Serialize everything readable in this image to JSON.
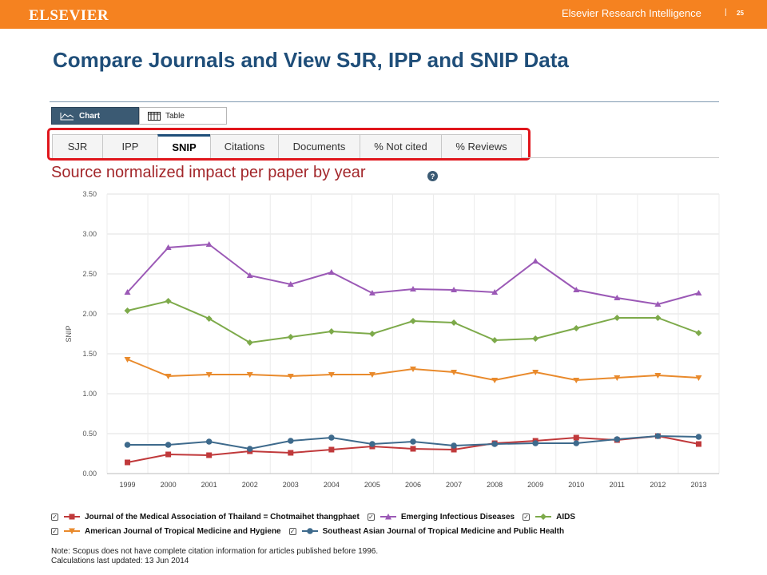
{
  "header": {
    "brand": "ELSEVIER",
    "right_brand": "Elsevier Research Intelligence",
    "separator": "|",
    "page_number": "25"
  },
  "title": "Compare Journals and View SJR, IPP and SNIP Data",
  "view_tabs": [
    {
      "label": "Chart",
      "active": true,
      "icon": "line-chart-icon"
    },
    {
      "label": "Table",
      "active": false,
      "icon": "table-icon"
    }
  ],
  "metric_tabs": [
    {
      "label": "SJR",
      "active": false
    },
    {
      "label": "IPP",
      "active": false
    },
    {
      "label": "SNIP",
      "active": true
    },
    {
      "label": "Citations",
      "active": false
    },
    {
      "label": "Documents",
      "active": false
    },
    {
      "label": "% Not cited",
      "active": false
    },
    {
      "label": "% Reviews",
      "active": false
    }
  ],
  "chart_heading": "Source normalized impact per paper by year",
  "help_icon": "?",
  "colors": {
    "header_orange": "#f58220",
    "title_blue": "#1f4e79",
    "chart_title_red": "#a3272b",
    "highlight_red": "#e0161c"
  },
  "chart_data": {
    "type": "line",
    "title": "Source normalized impact per paper by year",
    "ylabel": "SNIP",
    "xlabel": "",
    "ylim": [
      0,
      3.5
    ],
    "yticks": [
      "0.00",
      "0.50",
      "1.00",
      "1.50",
      "2.00",
      "2.50",
      "3.00",
      "3.50"
    ],
    "grid": true,
    "legend_position": "bottom",
    "x": [
      "1999",
      "2000",
      "2001",
      "2002",
      "2003",
      "2004",
      "2005",
      "2006",
      "2007",
      "2008",
      "2009",
      "2010",
      "2011",
      "2012",
      "2013"
    ],
    "series": [
      {
        "name": "Journal of the Medical Association of Thailand = Chotmaihet thangphaet",
        "color": "#c0393b",
        "marker": "square",
        "values": [
          0.14,
          0.24,
          0.23,
          0.28,
          0.26,
          0.3,
          0.34,
          0.31,
          0.3,
          0.38,
          0.41,
          0.45,
          0.42,
          0.47,
          0.37
        ]
      },
      {
        "name": "Emerging Infectious Diseases",
        "color": "#9b59b6",
        "marker": "triangle",
        "values": [
          2.27,
          2.83,
          2.87,
          2.48,
          2.37,
          2.52,
          2.26,
          2.31,
          2.3,
          2.27,
          2.66,
          2.3,
          2.2,
          2.12,
          2.26
        ]
      },
      {
        "name": "AIDS",
        "color": "#7daa4a",
        "marker": "diamond",
        "values": [
          2.04,
          2.16,
          1.94,
          1.64,
          1.71,
          1.78,
          1.75,
          1.91,
          1.89,
          1.67,
          1.69,
          1.82,
          1.95,
          1.95,
          1.76
        ]
      },
      {
        "name": "American Journal of Tropical Medicine and Hygiene",
        "color": "#e98a2c",
        "marker": "triangle-down",
        "values": [
          1.43,
          1.22,
          1.24,
          1.24,
          1.22,
          1.24,
          1.24,
          1.31,
          1.27,
          1.17,
          1.27,
          1.17,
          1.2,
          1.23,
          1.2
        ]
      },
      {
        "name": "Southeast Asian Journal of Tropical Medicine and Public Health",
        "color": "#3e6a8c",
        "marker": "circle",
        "values": [
          0.36,
          0.36,
          0.4,
          0.31,
          0.41,
          0.45,
          0.37,
          0.4,
          0.35,
          0.37,
          0.38,
          0.38,
          0.43,
          0.47,
          0.46
        ]
      }
    ]
  },
  "legend": [
    {
      "label": "Journal of the Medical Association of Thailand = Chotmaihet thangphaet",
      "checked": true
    },
    {
      "label": "Emerging Infectious Diseases",
      "checked": true
    },
    {
      "label": "AIDS",
      "checked": true
    },
    {
      "label": "American Journal of Tropical Medicine and Hygiene",
      "checked": true
    },
    {
      "label": "Southeast Asian Journal of Tropical Medicine and Public Health",
      "checked": true
    }
  ],
  "notes": {
    "line1": "Note: Scopus does not have complete citation information for articles published before 1996.",
    "line2": "Calculations last updated: 13 Jun 2014"
  }
}
